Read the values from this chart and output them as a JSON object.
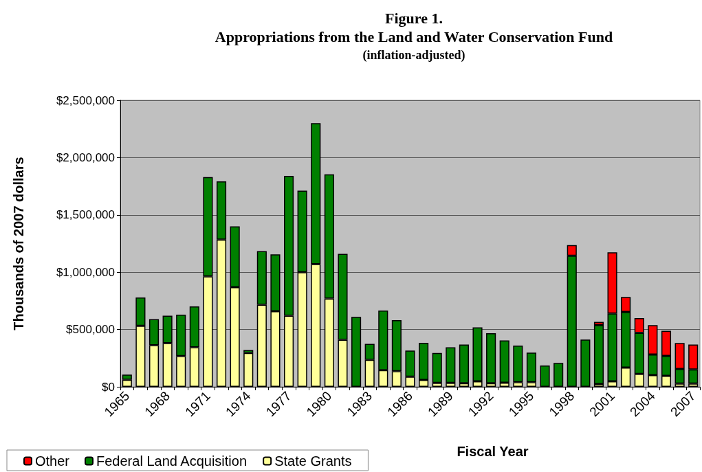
{
  "chart_data": {
    "type": "bar",
    "title": "Figure 1.\nAppropriations from the Land and Water Conservation Fund",
    "subtitle": "(inflation-adjusted)",
    "xlabel": "Fiscal Year",
    "ylabel": "Thousands of 2007 dollars",
    "categories": [
      "1965",
      null,
      null,
      "1968",
      null,
      null,
      "1971",
      null,
      null,
      "1974",
      null,
      null,
      "1977",
      null,
      null,
      "1980",
      null,
      null,
      "1983",
      null,
      null,
      "1986",
      null,
      null,
      "1989",
      null,
      null,
      "1992",
      null,
      null,
      "1995",
      null,
      null,
      "1998",
      null,
      null,
      "2001",
      null,
      null,
      "2004",
      null,
      null,
      "2007"
    ],
    "stacked": true,
    "series": [
      {
        "name": "State Grants",
        "color": "#ffff99",
        "values": [
          62000,
          532000,
          362000,
          380000,
          268000,
          344000,
          964000,
          1284000,
          870000,
          296000,
          716000,
          660000,
          620000,
          1000000,
          1070000,
          770000,
          410000,
          null,
          236000,
          146000,
          136000,
          88000,
          60000,
          34000,
          34000,
          32000,
          48000,
          32000,
          36000,
          40000,
          40000,
          null,
          null,
          null,
          null,
          24000,
          48000,
          168000,
          112000,
          102000,
          96000,
          28000,
          28000
        ]
      },
      {
        "name": "Federal Land Acquisition",
        "color": "#008000",
        "values": [
          44000,
          248000,
          228000,
          240000,
          362000,
          358000,
          866000,
          508000,
          530000,
          24000,
          468000,
          496000,
          1220000,
          712000,
          1230000,
          1084000,
          750000,
          610000,
          138000,
          520000,
          446000,
          228000,
          324000,
          262000,
          310000,
          336000,
          470000,
          436000,
          368000,
          320000,
          258000,
          186000,
          208000,
          1144000,
          412000,
          516000,
          592000,
          486000,
          358000,
          180000,
          174000,
          128000,
          124000
        ]
      },
      {
        "name": "Other",
        "color": "#ff0000",
        "values": [
          null,
          null,
          null,
          null,
          null,
          null,
          null,
          null,
          null,
          null,
          null,
          null,
          null,
          null,
          null,
          null,
          null,
          null,
          null,
          null,
          null,
          null,
          null,
          null,
          null,
          null,
          null,
          null,
          null,
          null,
          null,
          null,
          null,
          92000,
          null,
          26000,
          534000,
          130000,
          130000,
          256000,
          218000,
          226000,
          216000
        ]
      }
    ],
    "ylim": [
      0,
      2500000
    ],
    "yticks": [
      {
        "value": 0,
        "label": "$0"
      },
      {
        "value": 500000,
        "label": "$500,000"
      },
      {
        "value": 1000000,
        "label": "$1,000,000"
      },
      {
        "value": 1500000,
        "label": "$1,500,000"
      },
      {
        "value": 2000000,
        "label": "$2,000,000"
      },
      {
        "value": 2500000,
        "label": "$2,500,000"
      }
    ],
    "grid": "y",
    "legend": "bottom left"
  }
}
